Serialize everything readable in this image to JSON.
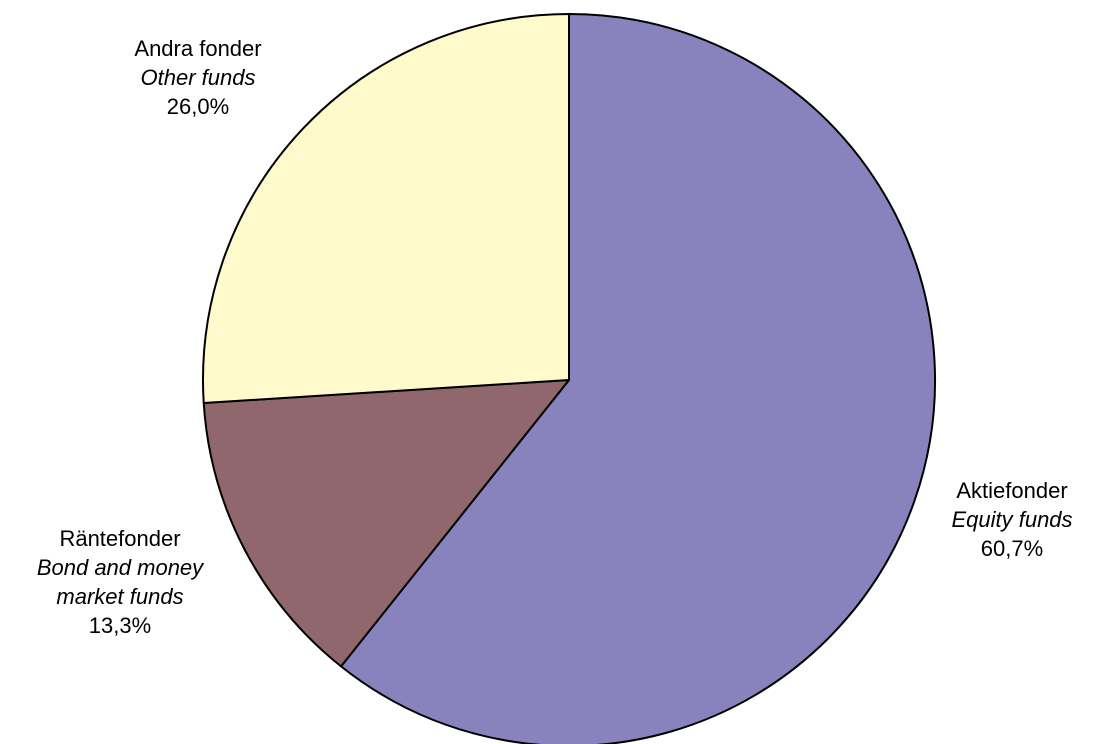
{
  "chart_data": {
    "type": "pie",
    "title": "",
    "slices": [
      {
        "label_sv": "Aktiefonder",
        "label_en": "Equity funds",
        "value": 60.7,
        "value_label": "60,7%",
        "color": "#8983BD"
      },
      {
        "label_sv": "Räntefonder",
        "label_en_line1": "Bond and money",
        "label_en_line2": "market funds",
        "value": 13.3,
        "value_label": "13,3%",
        "color": "#8F676C"
      },
      {
        "label_sv": "Andra fonder",
        "label_en": "Other funds",
        "value": 26.0,
        "value_label": "26,0%",
        "color": "#FFFACC"
      }
    ],
    "start_angle": "12 o'clock",
    "direction": "clockwise",
    "border_color": "#000000"
  }
}
